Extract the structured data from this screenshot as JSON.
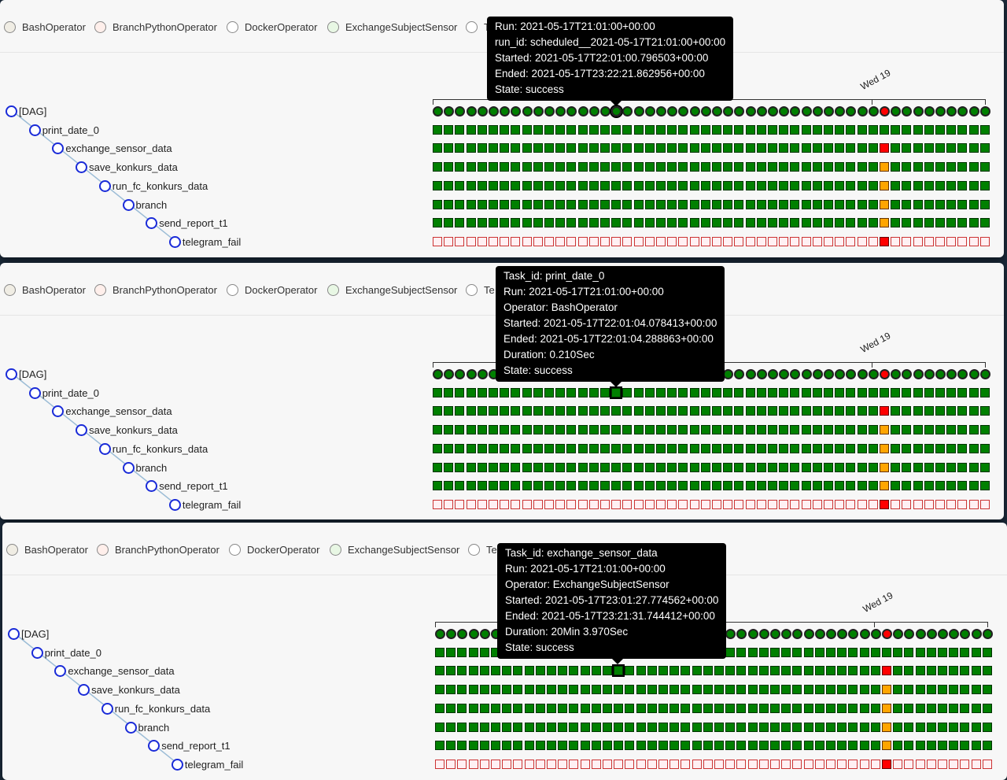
{
  "legend": [
    "BashOperator",
    "BranchPythonOperator",
    "DockerOperator",
    "ExchangeSubjectSensor",
    "Te"
  ],
  "legend_colors": [
    "#f0ede4",
    "#ffefeb",
    "#ffffff",
    "#e8f7e4",
    "#ffffff"
  ],
  "tasks": [
    "[DAG]",
    "print_date_0",
    "exchange_sensor_data",
    "save_konkurs_data",
    "run_fc_konkurs_data",
    "branch",
    "send_report_t1",
    "telegram_fail"
  ],
  "axis_label": "Wed 19",
  "panels": [
    {
      "tooltip": {
        "lines": [
          "Run: 2021-05-17T21:01:00+00:00",
          "run_id: scheduled__2021-05-17T21:01:00+00:00",
          "Started: 2021-05-17T22:01:00.796503+00:00",
          "Ended: 2021-05-17T23:22:21.862956+00:00",
          "State: success"
        ]
      }
    },
    {
      "tooltip": {
        "lines": [
          "Task_id: print_date_0",
          "Run: 2021-05-17T21:01:00+00:00",
          "Operator: BashOperator",
          "Started: 2021-05-17T22:01:04.078413+00:00",
          "Ended: 2021-05-17T22:01:04.288863+00:00",
          "Duration: 0.210Sec",
          "State: success"
        ]
      }
    },
    {
      "tooltip": {
        "lines": [
          "Task_id: exchange_sensor_data",
          "Run: 2021-05-17T21:01:00+00:00",
          "Operator: ExchangeSubjectSensor",
          "Started: 2021-05-17T23:01:27.774562+00:00",
          "Ended: 2021-05-17T23:21:31.744412+00:00",
          "Duration: 20Min 3.970Sec",
          "State: success"
        ]
      }
    }
  ],
  "grid": {
    "run_count": 50,
    "highlight_run": 16,
    "special_run": 40,
    "row_states": {
      "dag": {
        "default": "success",
        "special": "failed"
      },
      "print_date_0": {
        "default": "success",
        "special": "success"
      },
      "exchange_sensor_data": {
        "default": "success",
        "special": "failed"
      },
      "save_konkurs_data": {
        "default": "success",
        "special": "upstream_failed"
      },
      "run_fc_konkurs_data": {
        "default": "success",
        "special": "upstream_failed"
      },
      "branch": {
        "default": "success",
        "special": "upstream_failed"
      },
      "send_report_t1": {
        "default": "success",
        "special": "upstream_failed"
      },
      "telegram_fail": {
        "default": "none",
        "special": "failed"
      }
    }
  },
  "state_colors": {
    "success": "#008000",
    "failed": "#ff0000",
    "upstream_failed": "#ffa500",
    "none": "#fff0f3"
  }
}
